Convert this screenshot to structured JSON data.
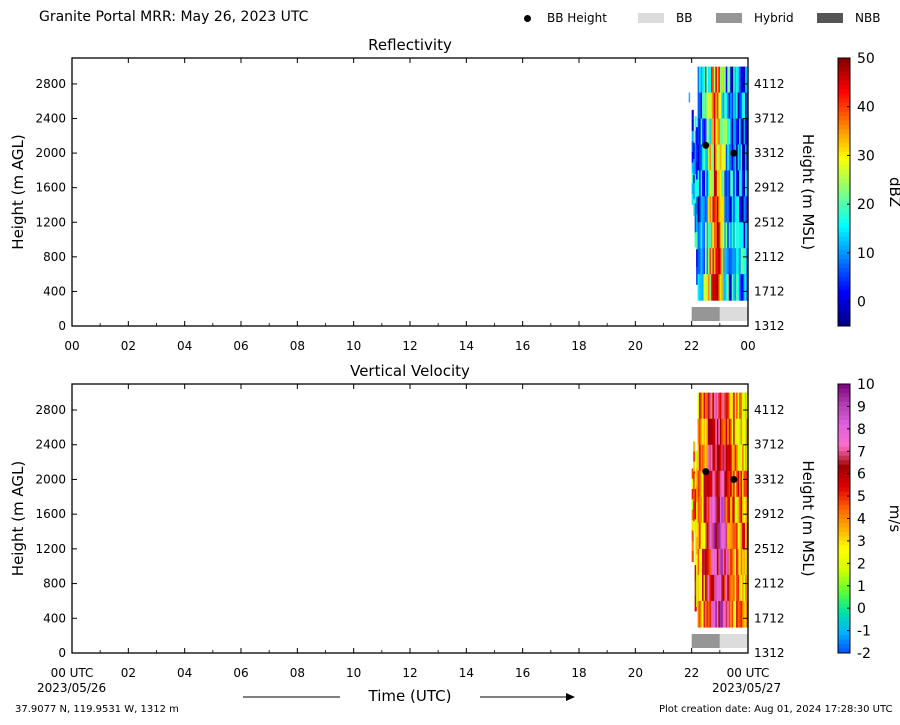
{
  "header": {
    "title": "Granite Portal MRR:  May 26, 2023 UTC"
  },
  "legend": {
    "items": [
      {
        "label": "BB Height",
        "kind": "dot",
        "color": "#000000"
      },
      {
        "label": "BB",
        "kind": "swatch",
        "color": "#dcdcdc"
      },
      {
        "label": "Hybrid",
        "kind": "swatch",
        "color": "#969696"
      },
      {
        "label": "NBB",
        "kind": "swatch",
        "color": "#555555"
      }
    ]
  },
  "footer": {
    "location": "37.9077 N, 119.9531 W, 1312 m",
    "creation": "Plot creation date: Aug 01, 2024 17:28:30 UTC",
    "date_start": "2023/05/26",
    "date_end": "2023/05/27"
  },
  "chart_data": [
    {
      "type": "heatmap",
      "title": "Reflectivity",
      "xlabel": "",
      "ylabel": "Height (m AGL)",
      "y2label": "Height (m MSL)",
      "x_ticks": [
        "00",
        "02",
        "04",
        "06",
        "08",
        "10",
        "12",
        "14",
        "16",
        "18",
        "20",
        "22",
        "00"
      ],
      "xlim_hours": [
        0,
        24
      ],
      "ylim": [
        0,
        3100
      ],
      "y_ticks": [
        0,
        400,
        800,
        1200,
        1600,
        2000,
        2400,
        2800
      ],
      "y2_ticks": [
        1312,
        1712,
        2112,
        2512,
        2912,
        3312,
        3712,
        4112
      ],
      "data_start_hour": 22.0,
      "data_bottom_m": 300,
      "data_top_m": 3000,
      "bb_height_points": [
        [
          22.5,
          2090
        ],
        [
          23.5,
          2000
        ]
      ],
      "bb_type_bar": [
        {
          "start_hour": 22.0,
          "end_hour": 23.0,
          "class": "Hybrid"
        },
        {
          "start_hour": 23.0,
          "end_hour": 24.0,
          "class": "BB"
        }
      ],
      "colorbar": {
        "label": "dBZ",
        "range": [
          -5,
          50
        ],
        "ticks": [
          0,
          10,
          20,
          30,
          40,
          50
        ],
        "colors": [
          "#00007f",
          "#0000ff",
          "#007fff",
          "#00ffff",
          "#7fff7f",
          "#ffff00",
          "#ff7f00",
          "#ff0000",
          "#7f0000"
        ]
      }
    },
    {
      "type": "heatmap",
      "title": "Vertical Velocity",
      "xlabel": "Time (UTC)",
      "ylabel": "Height (m AGL)",
      "y2label": "Height (m MSL)",
      "x_ticks": [
        "00 UTC",
        "02",
        "04",
        "06",
        "08",
        "10",
        "12",
        "14",
        "16",
        "18",
        "20",
        "22",
        "00 UTC"
      ],
      "xlim_hours": [
        0,
        24
      ],
      "ylim": [
        0,
        3100
      ],
      "y_ticks": [
        0,
        400,
        800,
        1200,
        1600,
        2000,
        2400,
        2800
      ],
      "y2_ticks": [
        1312,
        1712,
        2112,
        2512,
        2912,
        3312,
        3712,
        4112
      ],
      "data_start_hour": 22.0,
      "data_bottom_m": 300,
      "data_top_m": 3000,
      "bb_height_points": [
        [
          22.5,
          2090
        ],
        [
          23.5,
          2000
        ]
      ],
      "bb_type_bar": [
        {
          "start_hour": 22.0,
          "end_hour": 23.0,
          "class": "Hybrid"
        },
        {
          "start_hour": 23.0,
          "end_hour": 24.0,
          "class": "BB"
        }
      ],
      "colorbar": {
        "label": "m/s",
        "range": [
          -2,
          10
        ],
        "ticks": [
          -2,
          -1,
          0,
          1,
          2,
          3,
          4,
          5,
          6,
          7,
          8,
          9,
          10
        ],
        "colors": [
          "#0050ff",
          "#00b4ff",
          "#00e6a0",
          "#60ff30",
          "#d0ff00",
          "#ffff00",
          "#ffb000",
          "#ff6000",
          "#e00000",
          "#a00000",
          "#ff6ec8",
          "#e060e0",
          "#b040b0",
          "#800080"
        ]
      }
    }
  ]
}
